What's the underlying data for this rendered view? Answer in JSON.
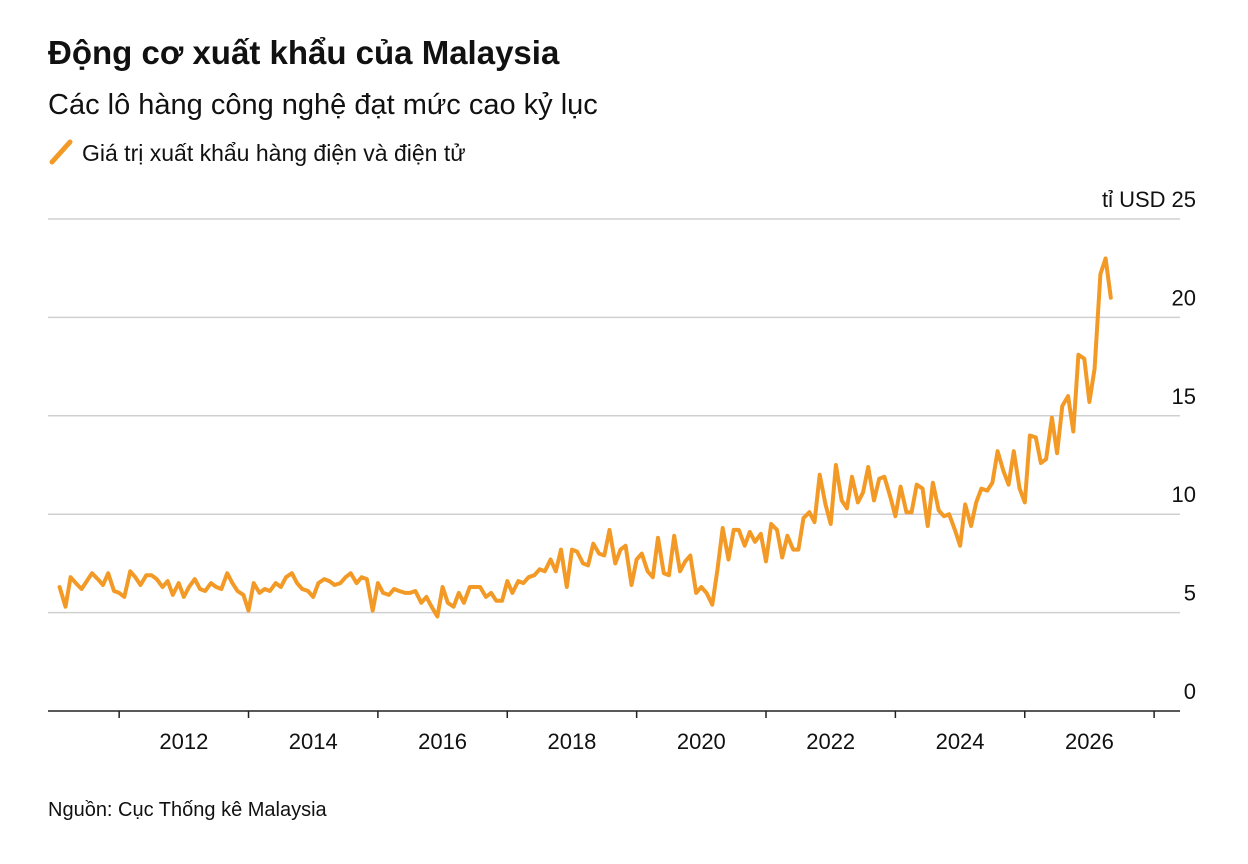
{
  "chart_data": {
    "type": "line",
    "title": "Động cơ xuất khẩu của Malaysia",
    "subtitle": "Các lô hàng công nghệ đạt mức cao kỷ lục",
    "y_unit": "tỉ USD",
    "source": "Nguồn: Cục Thống kê Malaysia",
    "xlim": [
      2009.9,
      2027.4
    ],
    "xticks": [
      2012,
      2014,
      2016,
      2018,
      2020,
      2022,
      2024,
      2026
    ],
    "xminor_ticks": [
      2011,
      2013,
      2015,
      2017,
      2019,
      2021,
      2023,
      2025,
      2027
    ],
    "ylim": [
      0,
      25
    ],
    "yticks": [
      0,
      5,
      10,
      15,
      20,
      25
    ],
    "grid": true,
    "series": [
      {
        "name": "Giá trị xuất khẩu hàng điện và điện tử",
        "color": "#f39a26",
        "x": [
          2010.08,
          2010.17,
          2010.25,
          2010.33,
          2010.42,
          2010.5,
          2010.58,
          2010.67,
          2010.75,
          2010.83,
          2010.92,
          2011,
          2011.08,
          2011.17,
          2011.25,
          2011.33,
          2011.42,
          2011.5,
          2011.58,
          2011.67,
          2011.75,
          2011.83,
          2011.92,
          2012,
          2012.08,
          2012.17,
          2012.25,
          2012.33,
          2012.42,
          2012.5,
          2012.58,
          2012.67,
          2012.75,
          2012.83,
          2012.92,
          2013,
          2013.08,
          2013.17,
          2013.25,
          2013.33,
          2013.42,
          2013.5,
          2013.58,
          2013.67,
          2013.75,
          2013.83,
          2013.92,
          2014,
          2014.08,
          2014.17,
          2014.25,
          2014.33,
          2014.42,
          2014.5,
          2014.58,
          2014.67,
          2014.75,
          2014.83,
          2014.92,
          2015,
          2015.08,
          2015.17,
          2015.25,
          2015.33,
          2015.42,
          2015.5,
          2015.58,
          2015.67,
          2015.75,
          2015.83,
          2015.92,
          2016,
          2016.08,
          2016.17,
          2016.25,
          2016.33,
          2016.42,
          2016.5,
          2016.58,
          2016.67,
          2016.75,
          2016.83,
          2016.92,
          2017,
          2017.08,
          2017.17,
          2017.25,
          2017.33,
          2017.42,
          2017.5,
          2017.58,
          2017.67,
          2017.75,
          2017.83,
          2017.92,
          2018,
          2018.08,
          2018.17,
          2018.25,
          2018.33,
          2018.42,
          2018.5,
          2018.58,
          2018.67,
          2018.75,
          2018.83,
          2018.92,
          2019,
          2019.08,
          2019.17,
          2019.25,
          2019.33,
          2019.42,
          2019.5,
          2019.58,
          2019.67,
          2019.75,
          2019.83,
          2019.92,
          2020,
          2020.08,
          2020.17,
          2020.25,
          2020.33,
          2020.42,
          2020.5,
          2020.58,
          2020.67,
          2020.75,
          2020.83,
          2020.92,
          2021,
          2021.08,
          2021.17,
          2021.25,
          2021.33,
          2021.42,
          2021.5,
          2021.58,
          2021.67,
          2021.75,
          2021.83,
          2021.92,
          2022,
          2022.08,
          2022.17,
          2022.25,
          2022.33,
          2022.42,
          2022.5,
          2022.58,
          2022.67,
          2022.75,
          2022.83,
          2022.92,
          2023,
          2023.08,
          2023.17,
          2023.25,
          2023.33,
          2023.42,
          2023.5,
          2023.58,
          2023.67,
          2023.75,
          2023.83,
          2023.92,
          2024,
          2024.08,
          2024.17,
          2024.25,
          2024.33,
          2024.42,
          2024.5,
          2024.58,
          2024.67,
          2024.75,
          2024.83,
          2024.92,
          2025,
          2025.08,
          2025.17,
          2025.25,
          2025.33,
          2025.42,
          2025.5,
          2025.58,
          2025.67,
          2025.75,
          2025.83,
          2025.92,
          2026,
          2026.08,
          2026.17,
          2026.25,
          2026.33
        ],
        "values": [
          6.3,
          5.3,
          6.8,
          6.5,
          6.2,
          6.6,
          7.0,
          6.7,
          6.4,
          7.0,
          6.1,
          6.0,
          5.8,
          7.1,
          6.8,
          6.4,
          6.9,
          6.9,
          6.7,
          6.3,
          6.6,
          5.9,
          6.5,
          5.8,
          6.3,
          6.7,
          6.2,
          6.1,
          6.5,
          6.3,
          6.2,
          7.0,
          6.5,
          6.1,
          5.9,
          5.1,
          6.5,
          6.0,
          6.2,
          6.1,
          6.5,
          6.3,
          6.8,
          7.0,
          6.5,
          6.2,
          6.1,
          5.8,
          6.5,
          6.7,
          6.6,
          6.4,
          6.5,
          6.8,
          7.0,
          6.5,
          6.8,
          6.7,
          5.1,
          6.5,
          6.0,
          5.9,
          6.2,
          6.1,
          6.0,
          6.0,
          6.1,
          5.5,
          5.8,
          5.3,
          4.8,
          6.3,
          5.5,
          5.3,
          6.0,
          5.5,
          6.3,
          6.3,
          6.3,
          5.8,
          6.0,
          5.6,
          5.6,
          6.6,
          6.0,
          6.6,
          6.5,
          6.8,
          6.9,
          7.2,
          7.1,
          7.7,
          7.1,
          8.2,
          6.3,
          8.2,
          8.1,
          7.5,
          7.4,
          8.5,
          8.0,
          7.9,
          9.2,
          7.5,
          8.2,
          8.4,
          6.4,
          7.7,
          8.0,
          7.1,
          6.8,
          8.8,
          7.0,
          6.9,
          8.9,
          7.1,
          7.6,
          7.9,
          6.0,
          6.3,
          6.0,
          5.4,
          7.2,
          9.3,
          7.7,
          9.2,
          9.2,
          8.4,
          9.1,
          8.6,
          9.0,
          7.6,
          9.5,
          9.2,
          7.8,
          8.9,
          8.2,
          8.2,
          9.8,
          10.1,
          9.6,
          12.0,
          10.5,
          9.5,
          12.5,
          10.7,
          10.3,
          11.9,
          10.6,
          11.1,
          12.4,
          10.7,
          11.8,
          11.9,
          10.9,
          9.9,
          11.4,
          10.1,
          10.1,
          11.5,
          11.3,
          9.4,
          11.6,
          10.2,
          9.9,
          10.0,
          9.2,
          8.4,
          10.5,
          9.4,
          10.6,
          11.3,
          11.2,
          11.6,
          13.2,
          12.2,
          11.5,
          13.2,
          11.3,
          10.6,
          14.0,
          13.9,
          12.6,
          12.8,
          14.9,
          13.1,
          15.5,
          16.0,
          14.2,
          18.1,
          17.9,
          15.7,
          17.4,
          22.2,
          23.0,
          21.0
        ]
      }
    ]
  }
}
